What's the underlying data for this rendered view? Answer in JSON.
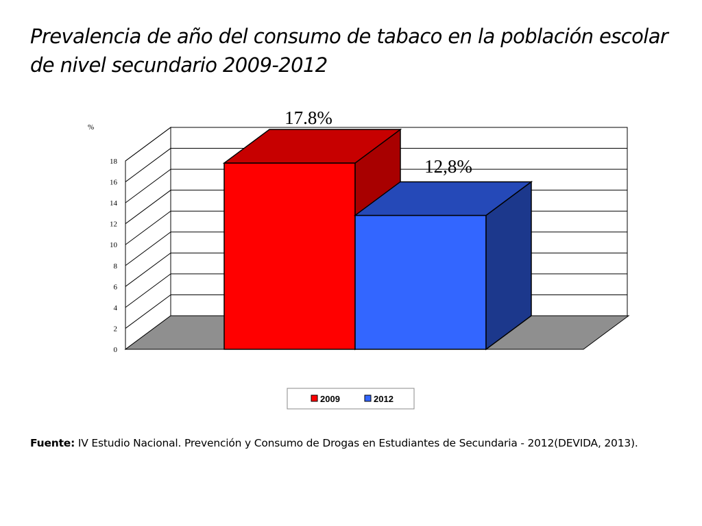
{
  "title": {
    "line1": "Prevalencia de año del consumo de tabaco en la población escolar",
    "line2": "de nivel secundario 2009-2012"
  },
  "chart_data": {
    "type": "bar",
    "style": "3d",
    "categories": [
      "2009",
      "2012"
    ],
    "values": [
      17.8,
      12.8
    ],
    "data_labels": [
      "17.8%",
      "12,8%"
    ],
    "colors": [
      "#ff0000",
      "#3366ff"
    ],
    "title": "Prevalencia de año del consumo de tabaco en la población escolar de nivel secundario 2009-2012",
    "ylabel": "%",
    "xlabel": "",
    "ylim": [
      0,
      18
    ],
    "yticks": [
      0,
      2,
      4,
      6,
      8,
      10,
      12,
      14,
      16,
      18
    ],
    "grid": true,
    "legend": {
      "position": "bottom",
      "entries": [
        "2009",
        "2012"
      ]
    }
  },
  "source": {
    "label": "Fuente:",
    "text": " IV Estudio Nacional. Prevención y Consumo de Drogas en Estudiantes de Secundaria - 2012(DEVIDA, 2013)."
  }
}
